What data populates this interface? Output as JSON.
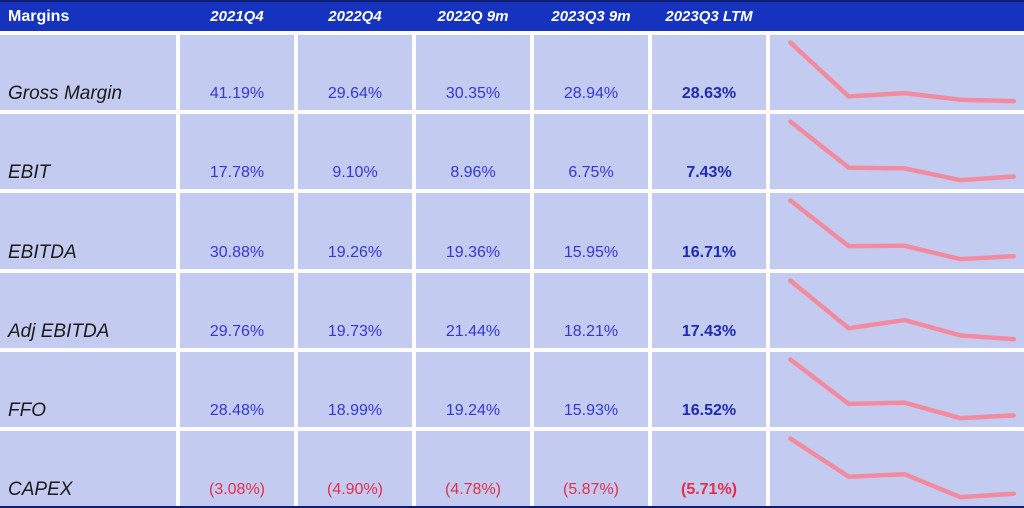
{
  "app": {
    "title_cell": "Margins"
  },
  "header": {
    "columns": [
      "2021Q4",
      "2022Q4",
      "2022Q 9m",
      "2023Q3 9m",
      "2023Q3 LTM"
    ]
  },
  "rows": [
    {
      "label": "Gross Margin",
      "display": [
        "41.19%",
        "29.64%",
        "30.35%",
        "28.94%",
        "28.63%"
      ],
      "color": "blue"
    },
    {
      "label": "EBIT",
      "display": [
        "17.78%",
        "9.10%",
        "8.96%",
        "6.75%",
        "7.43%"
      ],
      "color": "blue"
    },
    {
      "label": "EBITDA",
      "display": [
        "30.88%",
        "19.26%",
        "19.36%",
        "15.95%",
        "16.71%"
      ],
      "color": "blue"
    },
    {
      "label": "Adj EBITDA",
      "display": [
        "29.76%",
        "19.73%",
        "21.44%",
        "18.21%",
        "17.43%"
      ],
      "color": "blue"
    },
    {
      "label": "FFO",
      "display": [
        "28.48%",
        "18.99%",
        "19.24%",
        "15.93%",
        "16.52%"
      ],
      "color": "blue"
    },
    {
      "label": "CAPEX",
      "display": [
        "(3.08%)",
        "(4.90%)",
        "(4.78%)",
        "(5.87%)",
        "(5.71%)"
      ],
      "color": "red"
    }
  ],
  "chart_data": {
    "type": "table",
    "title": "Margins",
    "columns": [
      "2021Q4",
      "2022Q4",
      "2022Q 9m",
      "2023Q3 9m",
      "2023Q3 LTM"
    ],
    "rows": [
      {
        "label": "Gross Margin",
        "values_pct": [
          41.19,
          29.64,
          30.35,
          28.94,
          28.63
        ]
      },
      {
        "label": "EBIT",
        "values_pct": [
          17.78,
          9.1,
          8.96,
          6.75,
          7.43
        ]
      },
      {
        "label": "EBITDA",
        "values_pct": [
          30.88,
          19.26,
          19.36,
          15.95,
          16.71
        ]
      },
      {
        "label": "Adj EBITDA",
        "values_pct": [
          29.76,
          19.73,
          21.44,
          18.21,
          17.43
        ]
      },
      {
        "label": "FFO",
        "values_pct": [
          28.48,
          18.99,
          19.24,
          15.93,
          16.52
        ]
      },
      {
        "label": "CAPEX",
        "values_pct": [
          -3.08,
          -4.9,
          -4.78,
          -5.87,
          -5.71
        ]
      }
    ],
    "sparklines": {
      "type": "line",
      "per_row_scaling": true,
      "color": "#f28ba0",
      "note": "one sparkline per row in last column, scaled to each row's min/max"
    }
  },
  "colors": {
    "header_bg": "#1533bf",
    "header_text": "#ffffff",
    "cell_bg": "#c4cbf1",
    "grid_line": "#fdfdfe",
    "value_blue": "#3338cf",
    "value_blue_bold": "#1f2bae",
    "value_red": "#e62e49",
    "label_text": "#1a1a1a",
    "sparkline": "#f28ba0",
    "outer_border": "#101d72"
  }
}
